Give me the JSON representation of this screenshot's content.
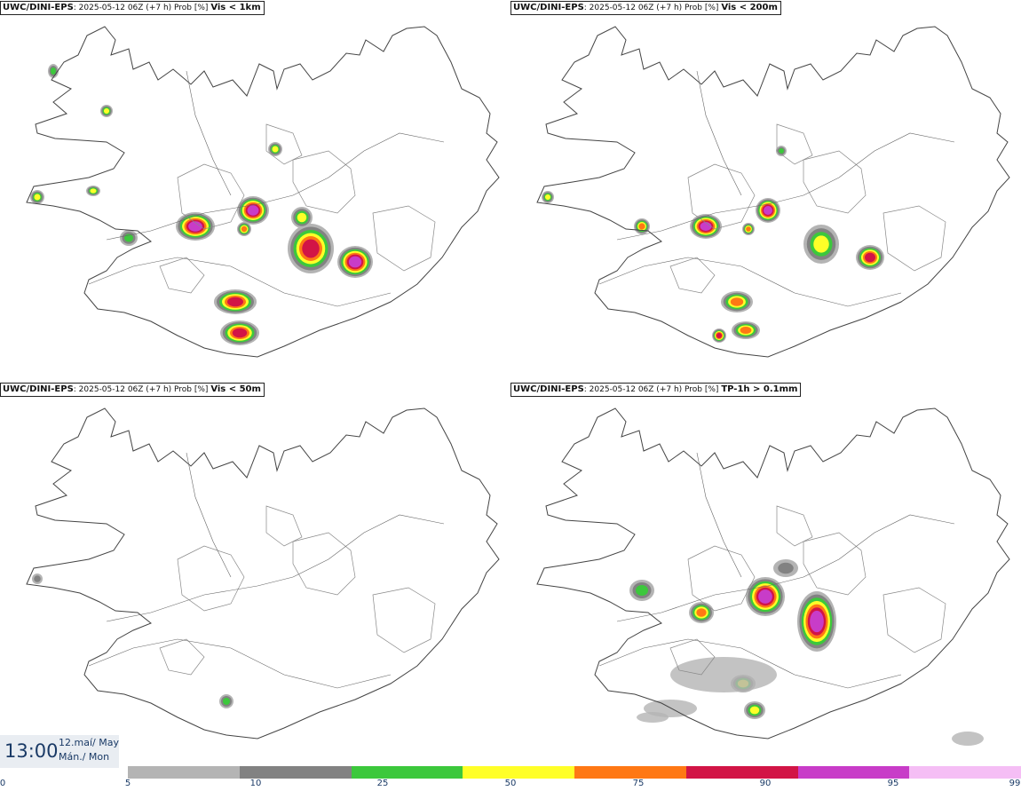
{
  "panels": [
    {
      "source": "UWC/DINI-EPS",
      "meta": ": 2025-05-12 06Z (+7 h) Prob [%] ",
      "field": "Vis < 1km"
    },
    {
      "source": "UWC/DINI-EPS",
      "meta": ": 2025-05-12 06Z (+7 h) Prob [%] ",
      "field": "Vis < 200m"
    },
    {
      "source": "UWC/DINI-EPS",
      "meta": ": 2025-05-12 06Z (+7 h) Prob [%] ",
      "field": "Vis < 50m"
    },
    {
      "source": "UWC/DINI-EPS",
      "meta": ": 2025-05-12 06Z (+7 h) Prob [%] ",
      "field": "TP-1h > 0.1mm"
    }
  ],
  "time": "13:00",
  "date_line1": "12.maí/ May",
  "date_line2": "Mán./ Mon",
  "legend": {
    "ticks": [
      "0",
      "5",
      "10",
      "25",
      "50",
      "75",
      "90",
      "95",
      "99"
    ],
    "colors": [
      "#b4b4b4",
      "#828282",
      "#3cc83c",
      "#ffff28",
      "#ff7814",
      "#d21446",
      "#c83cc8",
      "#f5bef5"
    ]
  }
}
